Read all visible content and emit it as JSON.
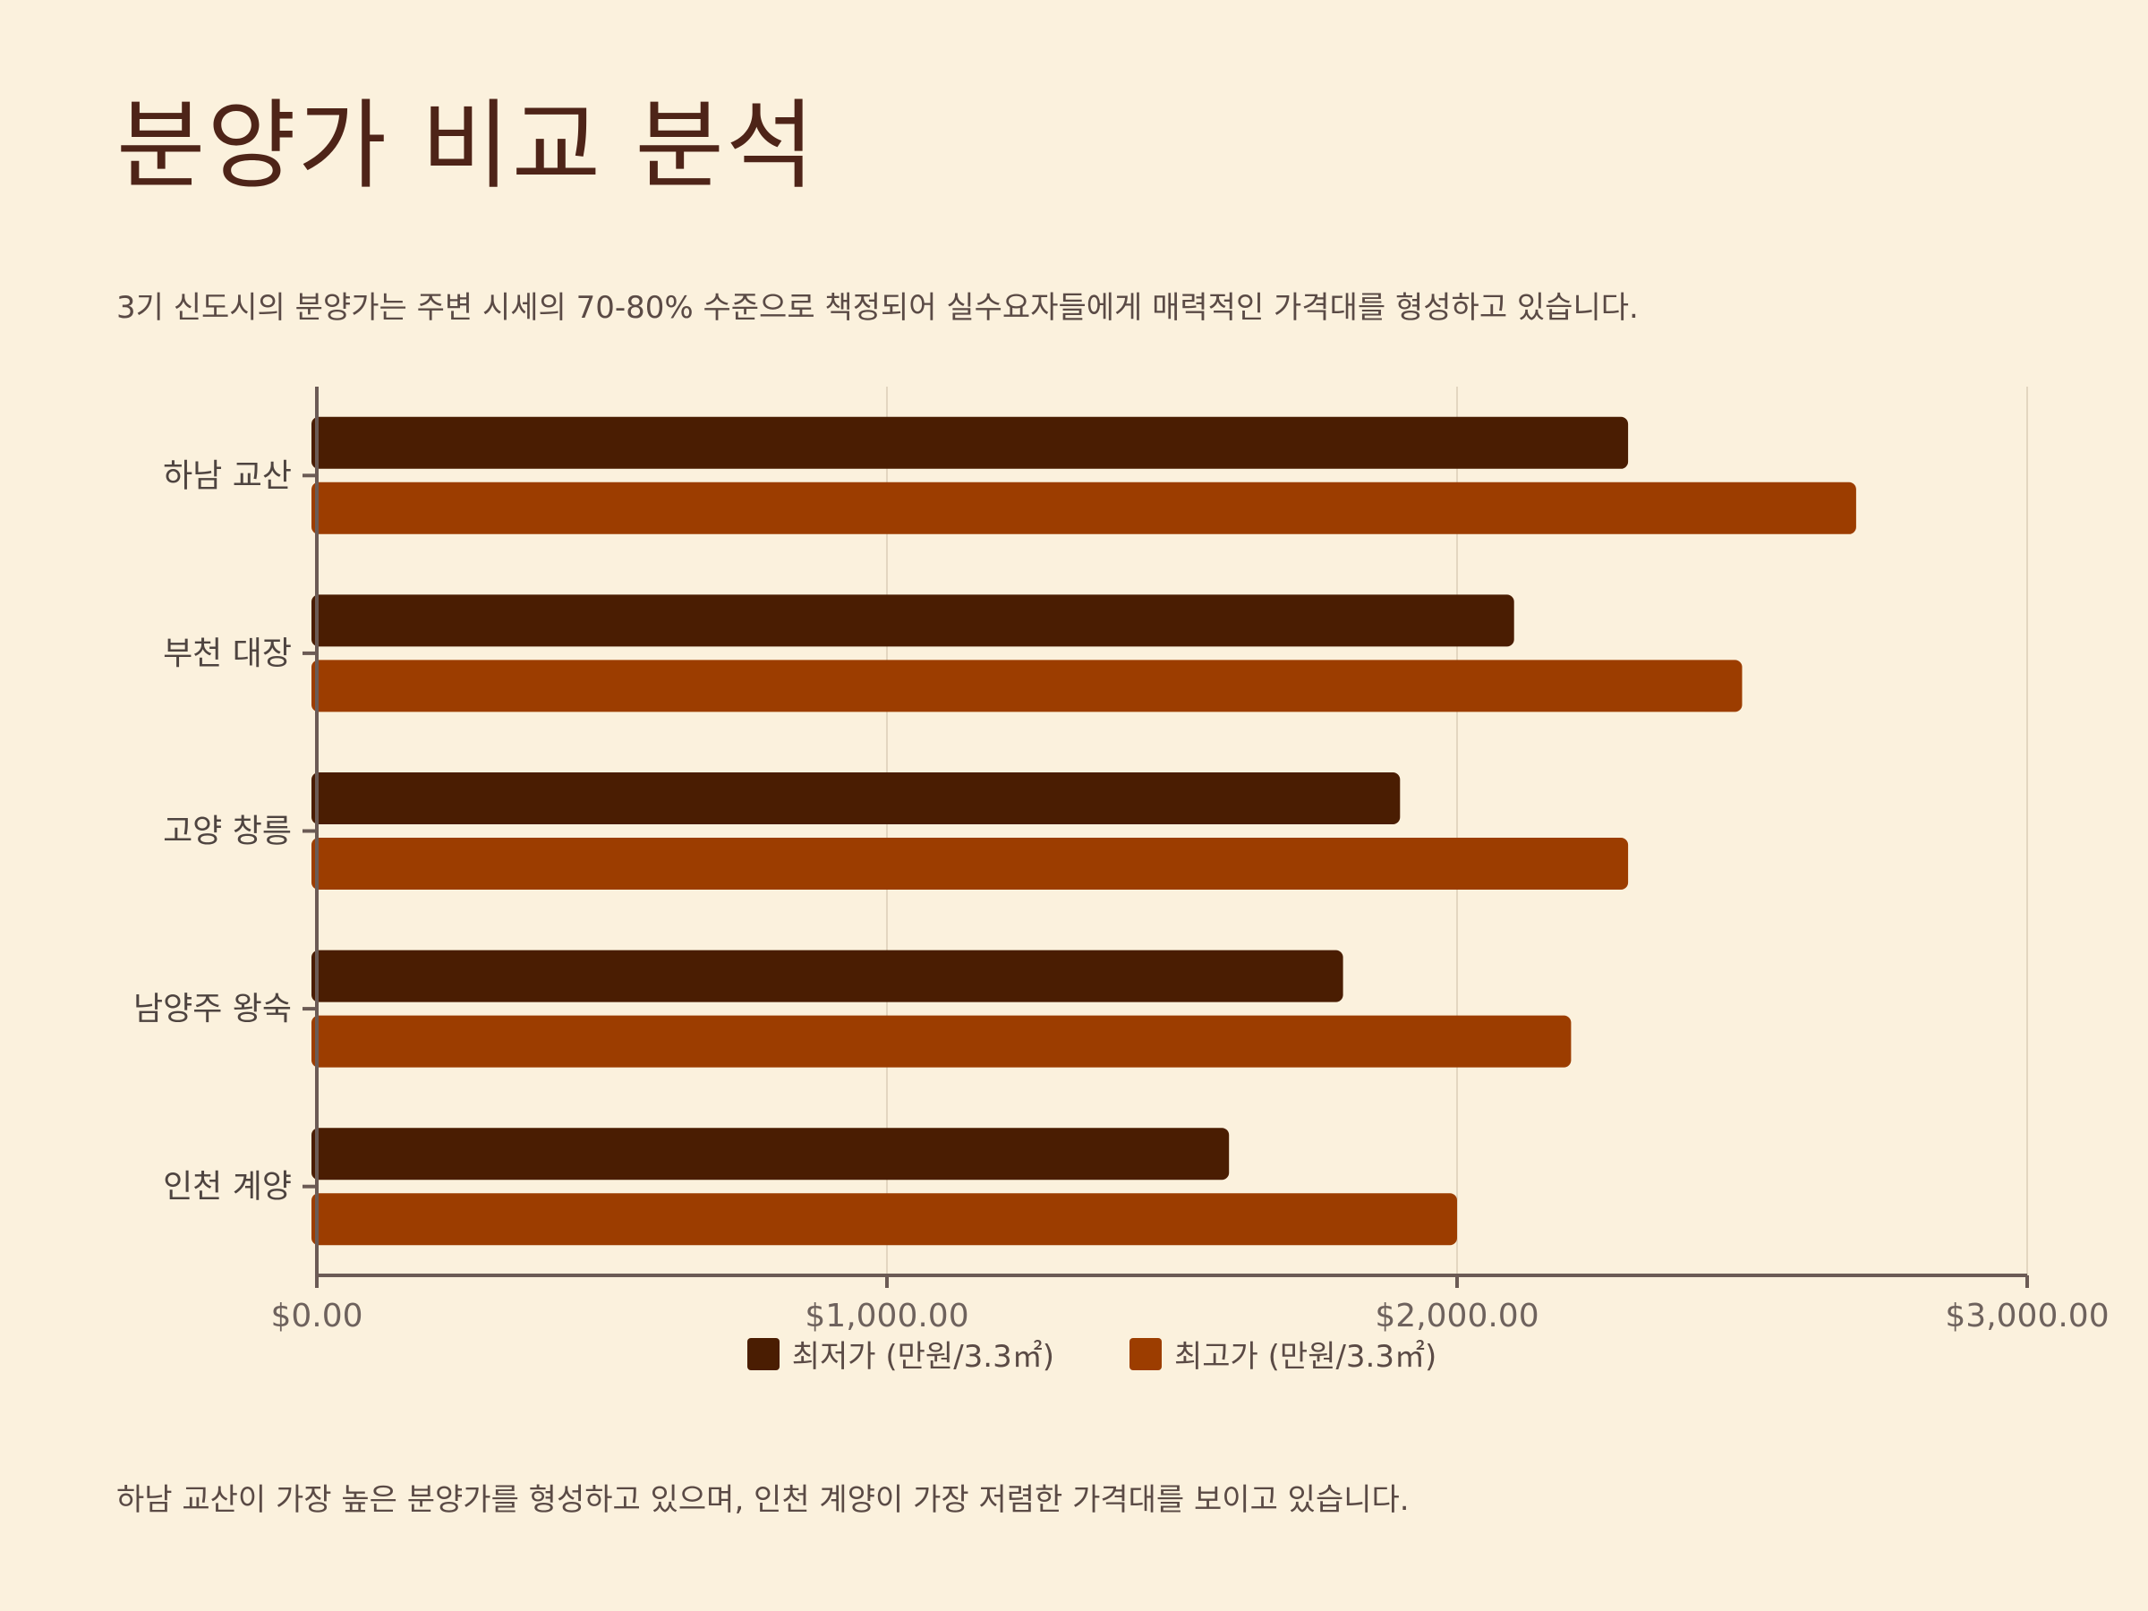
{
  "title": "분양가 비교 분석",
  "subtitle": "3기 신도시의 분양가는 주변 시세의 70-80% 수준으로 책정되어 실수요자들에게 매력적인 가격대를 형성하고 있습니다.",
  "footnote": "하남 교산이 가장 높은 분양가를 형성하고 있으며, 인천 계양이 가장 저렴한 가격대를 보이고 있습니다.",
  "chart_data": {
    "type": "bar",
    "orientation": "horizontal",
    "categories": [
      "하남 교산",
      "부천 대장",
      "고양 창릉",
      "남양주 왕숙",
      "인천 계양"
    ],
    "series": [
      {
        "name": "최저가 (만원/3.3㎡)",
        "color": "#4A1D02",
        "values": [
          2300,
          2100,
          1900,
          1800,
          1600
        ]
      },
      {
        "name": "최고가 (만원/3.3㎡)",
        "color": "#9C3D00",
        "values": [
          2700,
          2500,
          2300,
          2200,
          2000
        ]
      }
    ],
    "xlim": [
      0,
      3000
    ],
    "xticks": [
      0,
      1000,
      2000,
      3000
    ],
    "xtick_labels": [
      "$0.00",
      "$1,000.00",
      "$2,000.00",
      "$3,000.00"
    ],
    "grid": true,
    "legend_position": "bottom-center"
  }
}
